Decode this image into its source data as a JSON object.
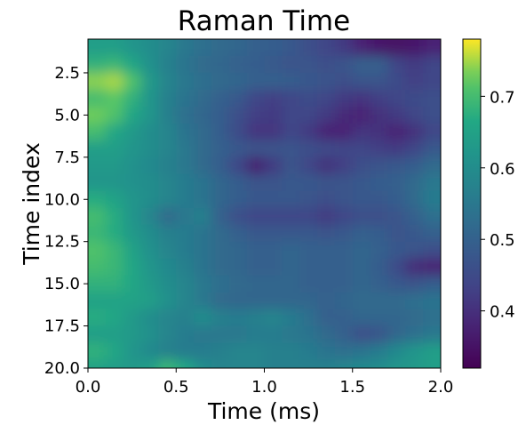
{
  "chart_data": {
    "type": "heatmap",
    "title": "Raman Time",
    "xlabel": "Time (ms)",
    "ylabel": "Time index",
    "xlim": [
      0.0,
      2.0
    ],
    "ylim": [
      20.0,
      1.0
    ],
    "y_inverted": true,
    "xticks": [
      0.0,
      0.5,
      1.0,
      1.5,
      2.0
    ],
    "xtick_labels": [
      "0.0",
      "0.5",
      "1.0",
      "1.5",
      "2.0"
    ],
    "yticks": [
      2.5,
      5.0,
      7.5,
      10.0,
      12.5,
      15.0,
      17.5,
      20.0
    ],
    "ytick_labels": [
      "2.5",
      "5.0",
      "7.5",
      "10.0",
      "12.5",
      "15.0",
      "17.5",
      "20.0"
    ],
    "colormap": "viridis",
    "colorbar": {
      "range": [
        0.32,
        0.78
      ],
      "ticks": [
        0.4,
        0.5,
        0.6,
        0.7
      ],
      "tick_labels": [
        "0.4",
        "0.5",
        "0.6",
        "0.7"
      ]
    },
    "x": [
      0.05,
      0.15,
      0.25,
      0.35,
      0.45,
      0.55,
      0.65,
      0.75,
      0.85,
      0.95,
      1.05,
      1.15,
      1.25,
      1.35,
      1.45,
      1.55,
      1.65,
      1.75,
      1.85,
      1.95
    ],
    "y": [
      1,
      2,
      3,
      4,
      5,
      6,
      7,
      8,
      9,
      10,
      11,
      12,
      13,
      14,
      15,
      16,
      17,
      18,
      19,
      20
    ],
    "z": [
      [
        0.64,
        0.64,
        0.62,
        0.6,
        0.58,
        0.55,
        0.53,
        0.52,
        0.51,
        0.5,
        0.49,
        0.48,
        0.46,
        0.44,
        0.42,
        0.38,
        0.36,
        0.35,
        0.36,
        0.38
      ],
      [
        0.68,
        0.69,
        0.66,
        0.61,
        0.57,
        0.54,
        0.52,
        0.51,
        0.5,
        0.49,
        0.48,
        0.47,
        0.47,
        0.46,
        0.47,
        0.5,
        0.5,
        0.44,
        0.42,
        0.44
      ],
      [
        0.74,
        0.75,
        0.71,
        0.63,
        0.58,
        0.55,
        0.53,
        0.52,
        0.51,
        0.5,
        0.5,
        0.49,
        0.48,
        0.47,
        0.46,
        0.47,
        0.47,
        0.45,
        0.43,
        0.44
      ],
      [
        0.7,
        0.72,
        0.68,
        0.62,
        0.57,
        0.54,
        0.52,
        0.5,
        0.48,
        0.44,
        0.43,
        0.44,
        0.45,
        0.44,
        0.42,
        0.41,
        0.43,
        0.44,
        0.45,
        0.46
      ],
      [
        0.73,
        0.71,
        0.66,
        0.62,
        0.57,
        0.53,
        0.51,
        0.49,
        0.46,
        0.43,
        0.42,
        0.44,
        0.44,
        0.42,
        0.39,
        0.38,
        0.4,
        0.42,
        0.44,
        0.46
      ],
      [
        0.7,
        0.66,
        0.63,
        0.6,
        0.58,
        0.54,
        0.52,
        0.49,
        0.45,
        0.41,
        0.41,
        0.44,
        0.42,
        0.38,
        0.38,
        0.41,
        0.4,
        0.38,
        0.4,
        0.44
      ],
      [
        0.64,
        0.64,
        0.62,
        0.6,
        0.58,
        0.55,
        0.52,
        0.5,
        0.48,
        0.47,
        0.47,
        0.47,
        0.46,
        0.45,
        0.44,
        0.44,
        0.43,
        0.42,
        0.44,
        0.48
      ],
      [
        0.63,
        0.63,
        0.61,
        0.59,
        0.57,
        0.55,
        0.52,
        0.49,
        0.44,
        0.37,
        0.42,
        0.47,
        0.44,
        0.4,
        0.43,
        0.46,
        0.47,
        0.48,
        0.49,
        0.52
      ],
      [
        0.62,
        0.62,
        0.61,
        0.6,
        0.58,
        0.56,
        0.54,
        0.51,
        0.49,
        0.47,
        0.47,
        0.48,
        0.48,
        0.47,
        0.47,
        0.48,
        0.49,
        0.5,
        0.52,
        0.55
      ],
      [
        0.67,
        0.65,
        0.62,
        0.6,
        0.58,
        0.56,
        0.54,
        0.51,
        0.49,
        0.48,
        0.48,
        0.48,
        0.47,
        0.46,
        0.47,
        0.48,
        0.48,
        0.49,
        0.52,
        0.56
      ],
      [
        0.7,
        0.67,
        0.62,
        0.58,
        0.52,
        0.55,
        0.57,
        0.5,
        0.46,
        0.44,
        0.44,
        0.44,
        0.44,
        0.42,
        0.44,
        0.46,
        0.46,
        0.47,
        0.5,
        0.53
      ],
      [
        0.69,
        0.67,
        0.63,
        0.6,
        0.57,
        0.56,
        0.54,
        0.52,
        0.5,
        0.48,
        0.48,
        0.48,
        0.48,
        0.47,
        0.48,
        0.5,
        0.49,
        0.47,
        0.48,
        0.5
      ],
      [
        0.71,
        0.69,
        0.65,
        0.61,
        0.58,
        0.56,
        0.54,
        0.52,
        0.51,
        0.5,
        0.5,
        0.51,
        0.5,
        0.5,
        0.5,
        0.51,
        0.5,
        0.48,
        0.47,
        0.46
      ],
      [
        0.7,
        0.69,
        0.66,
        0.62,
        0.59,
        0.57,
        0.54,
        0.52,
        0.51,
        0.5,
        0.5,
        0.51,
        0.5,
        0.5,
        0.5,
        0.51,
        0.49,
        0.45,
        0.39,
        0.38
      ],
      [
        0.68,
        0.68,
        0.66,
        0.63,
        0.6,
        0.58,
        0.55,
        0.53,
        0.52,
        0.51,
        0.51,
        0.51,
        0.5,
        0.5,
        0.5,
        0.51,
        0.5,
        0.48,
        0.47,
        0.49
      ],
      [
        0.65,
        0.65,
        0.65,
        0.64,
        0.61,
        0.58,
        0.55,
        0.52,
        0.51,
        0.51,
        0.51,
        0.51,
        0.51,
        0.5,
        0.51,
        0.52,
        0.52,
        0.52,
        0.53,
        0.54
      ],
      [
        0.67,
        0.66,
        0.63,
        0.6,
        0.58,
        0.57,
        0.6,
        0.57,
        0.56,
        0.57,
        0.58,
        0.56,
        0.53,
        0.5,
        0.5,
        0.51,
        0.51,
        0.51,
        0.52,
        0.53
      ],
      [
        0.64,
        0.64,
        0.63,
        0.61,
        0.58,
        0.56,
        0.55,
        0.55,
        0.55,
        0.56,
        0.56,
        0.55,
        0.54,
        0.52,
        0.5,
        0.46,
        0.47,
        0.51,
        0.53,
        0.55
      ],
      [
        0.68,
        0.66,
        0.62,
        0.59,
        0.57,
        0.56,
        0.56,
        0.57,
        0.58,
        0.58,
        0.57,
        0.57,
        0.56,
        0.54,
        0.53,
        0.54,
        0.56,
        0.59,
        0.62,
        0.64
      ],
      [
        0.65,
        0.64,
        0.63,
        0.64,
        0.69,
        0.66,
        0.6,
        0.58,
        0.58,
        0.58,
        0.57,
        0.57,
        0.57,
        0.57,
        0.58,
        0.59,
        0.6,
        0.62,
        0.63,
        0.64
      ]
    ]
  }
}
